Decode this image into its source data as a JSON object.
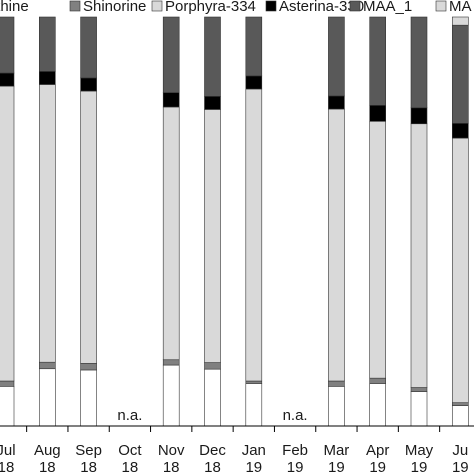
{
  "chart_data": {
    "type": "bar",
    "stacked": "100%",
    "title": "",
    "xlabel": "",
    "ylabel": "",
    "legend_position": "top",
    "categories": [
      {
        "month": "Jul",
        "year": "18"
      },
      {
        "month": "Aug",
        "year": "18"
      },
      {
        "month": "Sep",
        "year": "18"
      },
      {
        "month": "Oct",
        "year": "18"
      },
      {
        "month": "Nov",
        "year": "18"
      },
      {
        "month": "Dec",
        "year": "18"
      },
      {
        "month": "Jan",
        "year": "19"
      },
      {
        "month": "Feb",
        "year": "19"
      },
      {
        "month": "Mar",
        "year": "19"
      },
      {
        "month": "Apr",
        "year": "19"
      },
      {
        "month": "May",
        "year": "19"
      },
      {
        "month": "Ju",
        "year": "19"
      }
    ],
    "missing_label": "n.a.",
    "series": [
      {
        "name": "alythine",
        "color": "#ffffff",
        "values": [
          9.7,
          14.0,
          13.7,
          null,
          14.9,
          13.9,
          10.4,
          null,
          9.7,
          10.4,
          8.4,
          5.0
        ]
      },
      {
        "name": "Shinorine",
        "color": "#808080",
        "values": [
          1.3,
          1.6,
          1.6,
          null,
          1.3,
          1.6,
          0.6,
          null,
          1.3,
          1.3,
          1.0,
          0.7
        ]
      },
      {
        "name": "Porphyra-334",
        "color": "#d9d9d9",
        "values": [
          72.1,
          67.9,
          66.6,
          null,
          61.8,
          61.9,
          71.4,
          null,
          66.5,
          62.8,
          64.5,
          64.7
        ]
      },
      {
        "name": "Asterina-330",
        "color": "#000000",
        "values": [
          3.2,
          3.2,
          3.2,
          null,
          3.5,
          3.2,
          3.2,
          null,
          3.2,
          3.9,
          3.9,
          3.6
        ]
      },
      {
        "name": "MAA_1",
        "color": "#595959",
        "values": [
          13.7,
          13.3,
          14.9,
          null,
          18.5,
          19.4,
          14.4,
          null,
          19.3,
          21.6,
          22.2,
          24.0
        ]
      },
      {
        "name": "MA",
        "color": "#d9d9d9",
        "values": [
          0,
          0,
          0,
          null,
          0,
          0,
          0,
          null,
          0,
          0,
          0,
          2.0
        ]
      }
    ]
  }
}
